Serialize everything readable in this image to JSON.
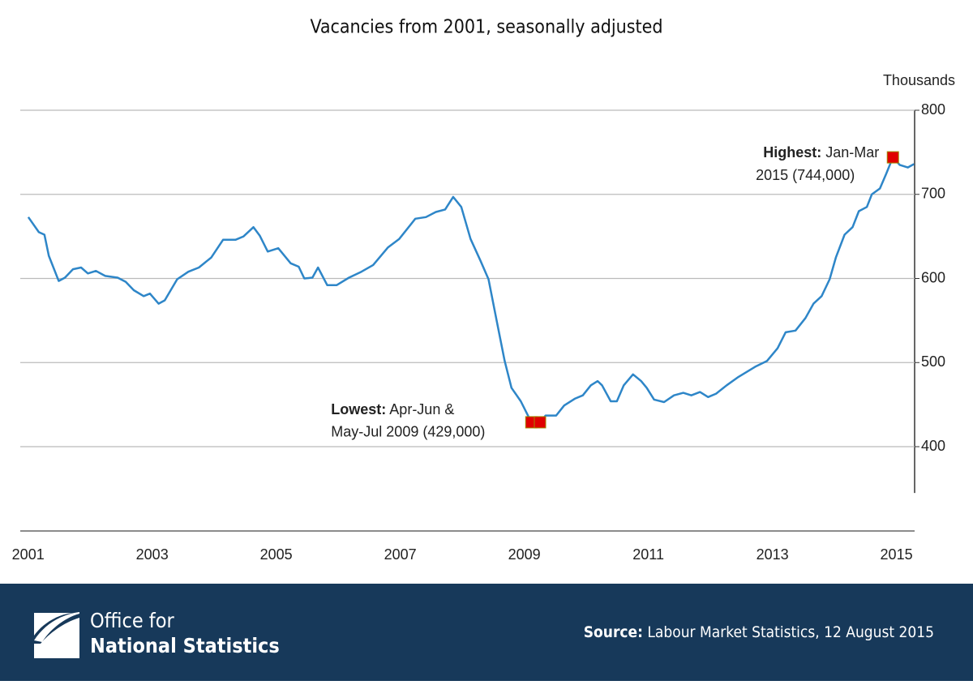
{
  "chart_data": {
    "type": "line",
    "title": "Vacancies from 2001, seasonally adjusted",
    "y_unit": "Thousands",
    "color": "#2e86c8",
    "grid": true,
    "marker_color": "#e00000",
    "xlim": [
      2001.03,
      2015.45
    ],
    "ylim": [
      345,
      800
    ],
    "yticks": [
      400,
      500,
      600,
      700,
      800
    ],
    "xticks": [
      2001,
      2003,
      2005,
      2007,
      2009,
      2011,
      2013,
      2015
    ],
    "x": [
      2001.16,
      2001.33,
      2001.42,
      2001.49,
      2001.65,
      2001.75,
      2001.88,
      2002.01,
      2002.12,
      2002.25,
      2002.4,
      2002.6,
      2002.73,
      2002.86,
      2003.02,
      2003.12,
      2003.26,
      2003.36,
      2003.56,
      2003.74,
      2003.91,
      2004.11,
      2004.3,
      2004.5,
      2004.63,
      2004.79,
      2004.89,
      2005.02,
      2005.19,
      2005.39,
      2005.52,
      2005.61,
      2005.74,
      2005.83,
      2005.98,
      2006.13,
      2006.33,
      2006.53,
      2006.72,
      2006.96,
      2007.14,
      2007.4,
      2007.57,
      2007.73,
      2007.88,
      2008.01,
      2008.14,
      2008.29,
      2008.45,
      2008.58,
      2008.71,
      2008.84,
      2008.95,
      2009.1,
      2009.27,
      2009.41,
      2009.5,
      2009.67,
      2009.8,
      2009.97,
      2010.1,
      2010.23,
      2010.34,
      2010.41,
      2010.55,
      2010.65,
      2010.76,
      2010.91,
      2011.04,
      2011.13,
      2011.25,
      2011.41,
      2011.57,
      2011.72,
      2011.85,
      2011.99,
      2012.12,
      2012.25,
      2012.42,
      2012.61,
      2012.88,
      2013.07,
      2013.24,
      2013.37,
      2013.53,
      2013.69,
      2013.82,
      2013.95,
      2014.08,
      2014.18,
      2014.32,
      2014.45,
      2014.55,
      2014.68,
      2014.76,
      2014.89,
      2014.99,
      2015.1,
      2015.21,
      2015.34,
      2015.44
    ],
    "values": [
      673,
      655,
      652,
      627,
      597,
      601,
      611,
      613,
      606,
      609,
      603,
      601,
      596,
      586,
      579,
      582,
      570,
      574,
      599,
      608,
      613,
      625,
      646,
      646,
      650,
      661,
      651,
      632,
      636,
      618,
      614,
      600,
      601,
      613,
      592,
      592,
      601,
      608,
      616,
      637,
      647,
      671,
      673,
      679,
      682,
      697,
      685,
      647,
      621,
      599,
      550,
      502,
      470,
      454,
      429,
      429,
      437,
      437,
      449,
      457,
      461,
      473,
      478,
      473,
      454,
      454,
      473,
      486,
      478,
      470,
      456,
      453,
      461,
      464,
      461,
      465,
      459,
      463,
      473,
      483,
      495,
      502,
      517,
      536,
      538,
      553,
      570,
      579,
      599,
      625,
      652,
      661,
      680,
      685,
      700,
      707,
      724,
      744,
      735,
      732,
      736
    ],
    "annotations": [
      {
        "bold": "Highest:",
        "lines": [
          "Jan-Mar",
          "2015 (744,000)"
        ]
      },
      {
        "bold": "Lowest:",
        "lines": [
          "Apr-Jun &",
          "May-Jul 2009 (429,000)"
        ]
      }
    ]
  },
  "footer": {
    "logo_lines": [
      "Office for",
      "National Statistics"
    ],
    "source_label": "Source:",
    "source_text": "Labour Market Statistics, 12 August 2015"
  }
}
